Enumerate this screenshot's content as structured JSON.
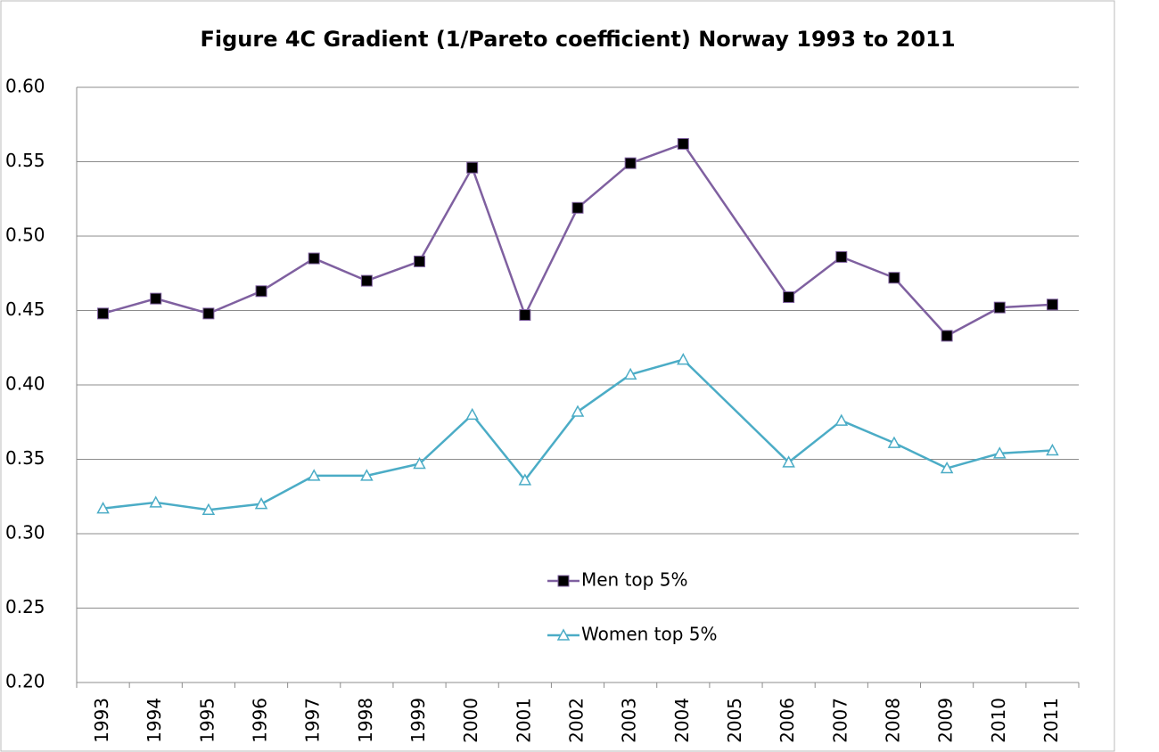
{
  "chart_data": {
    "type": "line",
    "title": "Figure 4C Gradient (1/Pareto coefficient) Norway 1993 to 2011",
    "categories": [
      "1993",
      "1994",
      "1995",
      "1996",
      "1997",
      "1998",
      "1999",
      "2000",
      "2001",
      "2002",
      "2003",
      "2004",
      "2005",
      "2006",
      "2007",
      "2008",
      "2009",
      "2010",
      "2011"
    ],
    "series": [
      {
        "name": "Men top 5%",
        "color": "#7f60a0",
        "marker": "square",
        "marker_color": "#000000",
        "values": [
          0.448,
          0.458,
          0.448,
          0.463,
          0.485,
          0.47,
          0.483,
          0.546,
          0.447,
          0.519,
          0.549,
          0.562,
          null,
          0.459,
          0.486,
          0.472,
          0.433,
          0.452,
          0.454
        ]
      },
      {
        "name": "Women top 5%",
        "color": "#4bacc6",
        "marker": "triangle",
        "marker_color": "#ffffff",
        "values": [
          0.317,
          0.321,
          0.316,
          0.32,
          0.339,
          0.339,
          0.347,
          0.38,
          0.336,
          0.382,
          0.407,
          0.417,
          null,
          0.348,
          0.376,
          0.361,
          0.344,
          0.354,
          0.356
        ]
      }
    ],
    "ylim": [
      0.2,
      0.6
    ],
    "yticks": [
      {
        "value": 0.2,
        "label": "0.20"
      },
      {
        "value": 0.25,
        "label": "0.25"
      },
      {
        "value": 0.3,
        "label": "0.30"
      },
      {
        "value": 0.35,
        "label": "0.35"
      },
      {
        "value": 0.4,
        "label": "0.40"
      },
      {
        "value": 0.45,
        "label": "0.45"
      },
      {
        "value": 0.5,
        "label": "0.50"
      },
      {
        "value": 0.55,
        "label": "0.55"
      },
      {
        "value": 0.6,
        "label": "0.60"
      }
    ],
    "grid": true,
    "legend": "center"
  }
}
